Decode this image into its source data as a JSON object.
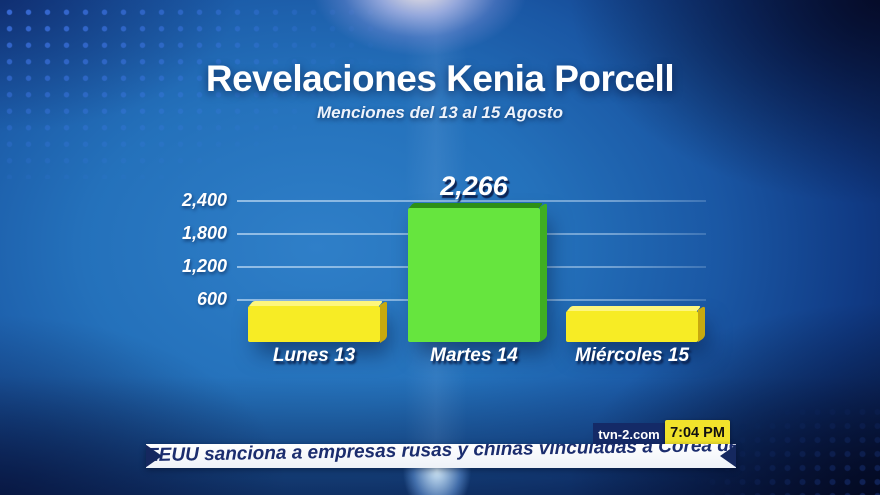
{
  "header": {
    "title": "Revelaciones Kenia Porcell",
    "subtitle": "Menciones del 13 al 15 Agosto"
  },
  "chart_data": {
    "type": "bar",
    "title": "Revelaciones Kenia Porcell",
    "subtitle": "Menciones del 13 al 15 Agosto",
    "categories": [
      "Lunes 13",
      "Martes 14",
      "Miércoles 15"
    ],
    "values": [
      500,
      2266,
      400
    ],
    "xlabel": "",
    "ylabel": "",
    "ylim": [
      0,
      2400
    ],
    "grid": true,
    "y_ticks": [
      2400,
      1800,
      1200,
      600
    ],
    "y_tick_labels": [
      "2,400",
      "1,800",
      "1,200",
      "600"
    ],
    "bars": [
      {
        "category": "Lunes 13",
        "value": 500,
        "value_label": "",
        "front": "#f7ec25",
        "top": "#fdf67d",
        "side": "#c7a90f"
      },
      {
        "category": "Martes 14",
        "value": 2266,
        "value_label": "2,266",
        "front": "#66e53e",
        "top": "#2d8f15",
        "side": "#3fae22"
      },
      {
        "category": "Miércoles 15",
        "value": 400,
        "value_label": "",
        "front": "#f7ec25",
        "top": "#fdf67d",
        "side": "#c7a90f"
      }
    ]
  },
  "ticker": {
    "headline": "EEUU sanciona a empresas rusas y chinas vinculadas a Corea del Norte"
  },
  "branding": {
    "website": "tvn-2.com",
    "time": "7:04 PM"
  },
  "colors": {
    "background_center": "#2f7fc8",
    "background_corner": "#081640",
    "bar_yellow": "#f7ec25",
    "bar_green": "#66e53e",
    "ticker_band": "#ffffff",
    "ticker_text": "#1b2d6e",
    "time_badge": "#f1e32b",
    "tvn_badge": "#142a67",
    "gridline": "#d0e6fa"
  }
}
